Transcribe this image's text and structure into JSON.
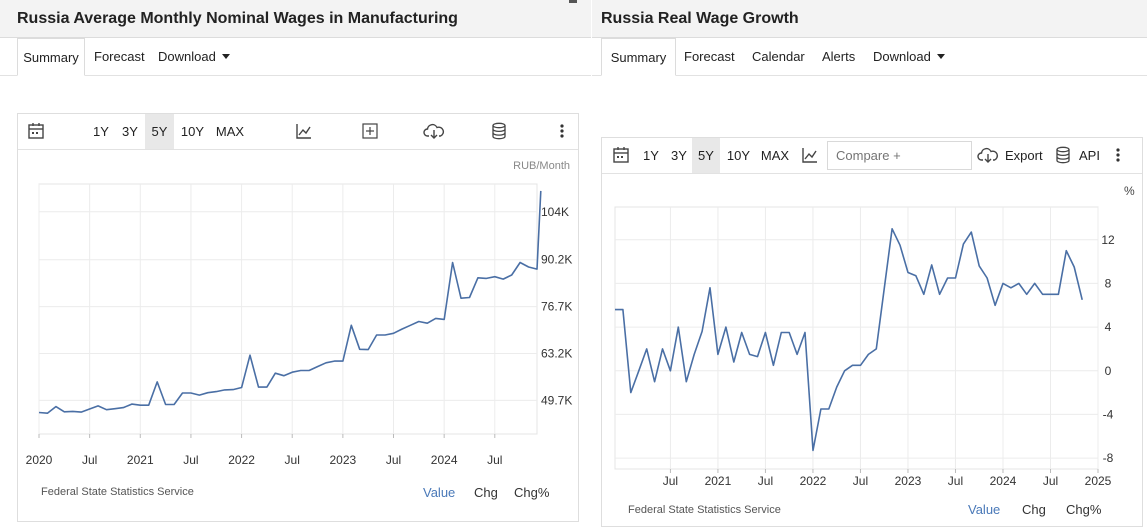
{
  "left": {
    "title": "Russia Average Monthly Nominal Wages in Manufacturing",
    "tabs": [
      {
        "label": "Summary"
      },
      {
        "label": "Forecast"
      },
      {
        "label": "Download"
      }
    ],
    "toolbar": {
      "ranges": [
        "1Y",
        "3Y",
        "5Y",
        "10Y",
        "MAX"
      ],
      "active_range": "5Y"
    },
    "unit": "RUB/Month",
    "source": "Federal State Statistics Service",
    "modes": [
      "Value",
      "Chg",
      "Chg%"
    ],
    "active_mode": "Value"
  },
  "right": {
    "title": "Russia Real Wage Growth",
    "tabs": [
      {
        "label": "Summary"
      },
      {
        "label": "Forecast"
      },
      {
        "label": "Calendar"
      },
      {
        "label": "Alerts"
      },
      {
        "label": "Download"
      }
    ],
    "toolbar": {
      "ranges": [
        "1Y",
        "3Y",
        "5Y",
        "10Y",
        "MAX"
      ],
      "active_range": "5Y",
      "compare_placeholder": "Compare +",
      "export_label": "Export",
      "api_label": "API"
    },
    "unit": "%",
    "source": "Federal State Statistics Service",
    "modes": [
      "Value",
      "Chg",
      "Chg%"
    ],
    "active_mode": "Value"
  },
  "icons": [
    "calendar-icon",
    "line-chart-icon",
    "plus-square-icon",
    "cloud-download-icon",
    "database-icon",
    "more-vertical-icon"
  ],
  "chart_data": [
    {
      "type": "line",
      "title": "Russia Average Monthly Nominal Wages in Manufacturing",
      "ylabel": "RUB/Month",
      "x_range": [
        "2020-01",
        "2024-12"
      ],
      "ylim": [
        40000,
        112000
      ],
      "y_ticks": [
        49700,
        63200,
        76700,
        90200,
        104000
      ],
      "y_tick_labels": [
        "49.7K",
        "63.2K",
        "76.7K",
        "90.2K",
        "104K"
      ],
      "x_tick_labels": [
        "2020",
        "Jul",
        "2021",
        "Jul",
        "2022",
        "Jul",
        "2023",
        "Jul",
        "2024",
        "Jul"
      ],
      "x_tick_dates": [
        "2020-01",
        "2020-07",
        "2021-01",
        "2021-07",
        "2022-01",
        "2022-07",
        "2023-01",
        "2023-07",
        "2024-01",
        "2024-07"
      ],
      "grid": true,
      "series": [
        {
          "color": "#4a6fa5",
          "x": [
            "2020-01",
            "2020-02",
            "2020-03",
            "2020-04",
            "2020-05",
            "2020-06",
            "2020-07",
            "2020-08",
            "2020-09",
            "2020-10",
            "2020-11",
            "2020-12",
            "2021-01",
            "2021-02",
            "2021-03",
            "2021-04",
            "2021-05",
            "2021-06",
            "2021-07",
            "2021-08",
            "2021-09",
            "2021-10",
            "2021-11",
            "2021-12",
            "2022-01",
            "2022-02",
            "2022-03",
            "2022-04",
            "2022-05",
            "2022-06",
            "2022-07",
            "2022-08",
            "2022-09",
            "2022-10",
            "2022-11",
            "2022-12",
            "2023-01",
            "2023-02",
            "2023-03",
            "2023-04",
            "2023-05",
            "2023-06",
            "2023-07",
            "2023-08",
            "2023-09",
            "2023-10",
            "2023-11",
            "2023-12",
            "2024-01",
            "2024-02",
            "2024-03",
            "2024-04",
            "2024-05",
            "2024-06",
            "2024-07",
            "2024-08",
            "2024-09",
            "2024-10",
            "2024-11",
            "2024-12"
          ],
          "values": [
            46200,
            46000,
            47900,
            46400,
            46500,
            46300,
            47200,
            48100,
            47000,
            47300,
            47600,
            48600,
            48300,
            48300,
            55000,
            48500,
            48500,
            51800,
            51800,
            51200,
            51900,
            52200,
            52700,
            52800,
            53400,
            62700,
            53500,
            53500,
            57500,
            56800,
            57800,
            58300,
            58300,
            59400,
            60500,
            61000,
            61000,
            71300,
            64400,
            64300,
            68500,
            68500,
            69000,
            70200,
            71300,
            72400,
            71900,
            73300,
            73000,
            89400,
            79100,
            79300,
            85000,
            84800,
            85300,
            84600,
            85800,
            89400,
            88100,
            87500
          ]
        },
        {
          "note": "final December data point",
          "x": [
            "2024-12-end"
          ],
          "values": [
            110000
          ]
        }
      ]
    },
    {
      "type": "line",
      "title": "Russia Real Wage Growth",
      "ylabel": "%",
      "x_range": [
        "2019-12",
        "2025-01"
      ],
      "ylim": [
        -9,
        15
      ],
      "y_ticks": [
        -8,
        -4,
        0,
        4,
        8,
        12
      ],
      "x_tick_labels": [
        "Jul",
        "2021",
        "Jul",
        "2022",
        "Jul",
        "2023",
        "Jul",
        "2024",
        "Jul",
        "2025"
      ],
      "x_tick_dates": [
        "2020-07",
        "2021-01",
        "2021-07",
        "2022-01",
        "2022-07",
        "2023-01",
        "2023-07",
        "2024-01",
        "2024-07",
        "2025-01"
      ],
      "grid": true,
      "series": [
        {
          "color": "#4a6fa5",
          "x": [
            "2019-12",
            "2020-01",
            "2020-02",
            "2020-03",
            "2020-04",
            "2020-05",
            "2020-06",
            "2020-07",
            "2020-08",
            "2020-09",
            "2020-10",
            "2020-11",
            "2020-12",
            "2021-01",
            "2021-02",
            "2021-03",
            "2021-04",
            "2021-05",
            "2021-06",
            "2021-07",
            "2021-08",
            "2021-09",
            "2021-10",
            "2021-11",
            "2021-12",
            "2022-01",
            "2022-02",
            "2022-03",
            "2022-04",
            "2022-05",
            "2022-06",
            "2022-07",
            "2022-08",
            "2022-09",
            "2022-10",
            "2022-11",
            "2022-12",
            "2023-01",
            "2023-02",
            "2023-03",
            "2023-04",
            "2023-05",
            "2023-06",
            "2023-07",
            "2023-08",
            "2023-09",
            "2023-10",
            "2023-11",
            "2023-12",
            "2024-01",
            "2024-02",
            "2024-03",
            "2024-04",
            "2024-05",
            "2024-06",
            "2024-07",
            "2024-08",
            "2024-09",
            "2024-10",
            "2024-11"
          ],
          "values": [
            5.6,
            5.6,
            -2.0,
            0.0,
            2.0,
            -1.0,
            2.0,
            0.0,
            4.0,
            -1.0,
            1.5,
            3.6,
            7.6,
            1.5,
            4.0,
            0.8,
            3.5,
            1.5,
            1.3,
            3.5,
            0.5,
            3.5,
            3.5,
            1.5,
            3.5,
            -7.3,
            -3.5,
            -3.5,
            -1.5,
            0.0,
            0.5,
            0.5,
            1.5,
            2.0,
            7.5,
            13.0,
            11.5,
            9.0,
            8.7,
            7.0,
            9.7,
            7.0,
            8.5,
            8.5,
            11.6,
            12.7,
            9.6,
            8.5,
            6.0,
            8.0,
            7.6,
            8.0,
            7.0,
            8.0,
            7.0,
            7.0,
            7.0,
            11.0,
            9.5,
            6.5
          ]
        }
      ]
    }
  ]
}
